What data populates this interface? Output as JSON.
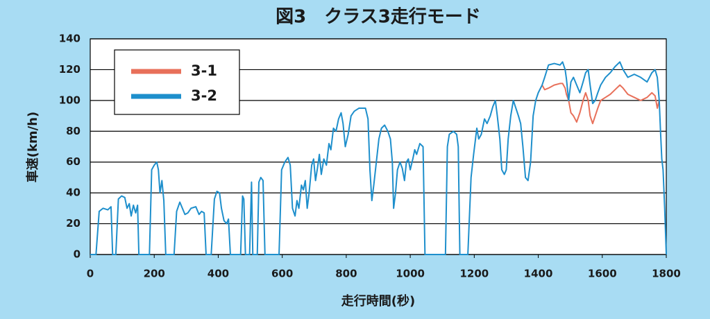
{
  "chart_data": {
    "type": "line",
    "title": "図3　クラス3走行モード",
    "ylabel": "車速(km/h)",
    "xlabel": "走行時間(秒)",
    "xlim": [
      0,
      1800
    ],
    "xticks": [
      0,
      200,
      400,
      600,
      800,
      1000,
      1200,
      1400,
      1600,
      1800
    ],
    "ylim": [
      0,
      140
    ],
    "yticks": [
      0,
      20,
      40,
      60,
      80,
      100,
      120,
      140
    ],
    "grid": true,
    "legend": "upper left",
    "series": [
      {
        "name": "3-1",
        "color": "#e8705a",
        "x": [
          1412,
          1420,
          1432,
          1450,
          1468,
          1476,
          1484,
          1488,
          1495,
          1502,
          1510,
          1520,
          1530,
          1540,
          1548,
          1556,
          1562,
          1570,
          1578,
          1586,
          1595,
          1610,
          1625,
          1640,
          1655,
          1665,
          1680,
          1700,
          1720,
          1740,
          1755,
          1765,
          1772,
          1778
        ],
        "values": [
          110,
          107,
          108,
          110,
          111,
          111,
          108,
          104,
          100,
          92,
          90,
          86,
          92,
          100,
          105,
          100,
          90,
          85,
          90,
          95,
          100,
          102,
          104,
          107,
          110,
          108,
          104,
          102,
          100,
          102,
          105,
          103,
          95,
          100
        ]
      },
      {
        "name": "3-2",
        "color": "#1e8fcc",
        "x": [
          0,
          18,
          28,
          40,
          55,
          65,
          70,
          80,
          88,
          98,
          108,
          115,
          122,
          128,
          135,
          142,
          148,
          152,
          185,
          192,
          200,
          208,
          213,
          218,
          224,
          230,
          236,
          262,
          270,
          280,
          288,
          296,
          305,
          315,
          330,
          340,
          348,
          356,
          362,
          378,
          388,
          396,
          404,
          410,
          418,
          426,
          432,
          438,
          470,
          476,
          480,
          485,
          498,
          504,
          508,
          522,
          527,
          533,
          540,
          546,
          590,
          598,
          608,
          618,
          625,
          632,
          640,
          646,
          652,
          660,
          666,
          672,
          678,
          684,
          692,
          698,
          704,
          710,
          716,
          722,
          730,
          738,
          746,
          752,
          760,
          768,
          776,
          784,
          790,
          797,
          806,
          815,
          825,
          840,
          860,
          868,
          874,
          880,
          886,
          894,
          902,
          910,
          920,
          930,
          938,
          944,
          948,
          954,
          960,
          968,
          975,
          982,
          988,
          994,
          1000,
          1008,
          1014,
          1020,
          1030,
          1040,
          1046,
          1110,
          1116,
          1122,
          1135,
          1145,
          1150,
          1155,
          1180,
          1190,
          1198,
          1208,
          1214,
          1222,
          1232,
          1240,
          1250,
          1258,
          1266,
          1272,
          1280,
          1286,
          1294,
          1300,
          1306,
          1314,
          1322,
          1330,
          1338,
          1345,
          1352,
          1360,
          1368,
          1376,
          1384,
          1392,
          1400,
          1412,
          1420,
          1432,
          1450,
          1468,
          1476,
          1484,
          1488,
          1495,
          1502,
          1510,
          1520,
          1530,
          1540,
          1548,
          1556,
          1562,
          1570,
          1578,
          1586,
          1595,
          1610,
          1625,
          1640,
          1655,
          1665,
          1680,
          1700,
          1720,
          1740,
          1755,
          1765,
          1772,
          1778,
          1782,
          1786,
          1790,
          1795,
          1800
        ],
        "values": [
          0,
          0,
          28,
          30,
          29,
          31,
          0,
          0,
          36,
          38,
          37,
          30,
          33,
          25,
          32,
          27,
          32,
          0,
          0,
          55,
          58,
          60,
          55,
          40,
          48,
          35,
          0,
          0,
          28,
          34,
          30,
          26,
          27,
          30,
          31,
          26,
          28,
          27,
          0,
          0,
          36,
          41,
          40,
          30,
          22,
          20,
          23,
          0,
          0,
          38,
          36,
          0,
          0,
          47,
          0,
          0,
          47,
          50,
          48,
          0,
          0,
          55,
          60,
          63,
          58,
          30,
          25,
          35,
          30,
          45,
          42,
          48,
          30,
          40,
          58,
          62,
          48,
          56,
          65,
          52,
          62,
          58,
          72,
          68,
          82,
          80,
          88,
          92,
          85,
          70,
          78,
          90,
          93,
          95,
          95,
          88,
          55,
          35,
          45,
          60,
          75,
          82,
          84,
          80,
          75,
          60,
          30,
          40,
          55,
          60,
          56,
          48,
          60,
          62,
          55,
          62,
          68,
          65,
          72,
          70,
          0,
          0,
          70,
          78,
          80,
          78,
          70,
          0,
          0,
          50,
          65,
          82,
          75,
          78,
          88,
          85,
          90,
          96,
          100,
          90,
          75,
          55,
          52,
          55,
          75,
          90,
          100,
          95,
          90,
          85,
          70,
          50,
          48,
          60,
          90,
          100,
          105,
          110,
          115,
          123,
          124,
          123,
          125,
          120,
          114,
          100,
          112,
          115,
          110,
          105,
          112,
          118,
          120,
          110,
          98,
          100,
          105,
          110,
          115,
          118,
          122,
          125,
          120,
          115,
          117,
          115,
          112,
          118,
          120,
          115,
          100,
          80,
          62,
          55,
          30,
          0
        ]
      }
    ]
  }
}
